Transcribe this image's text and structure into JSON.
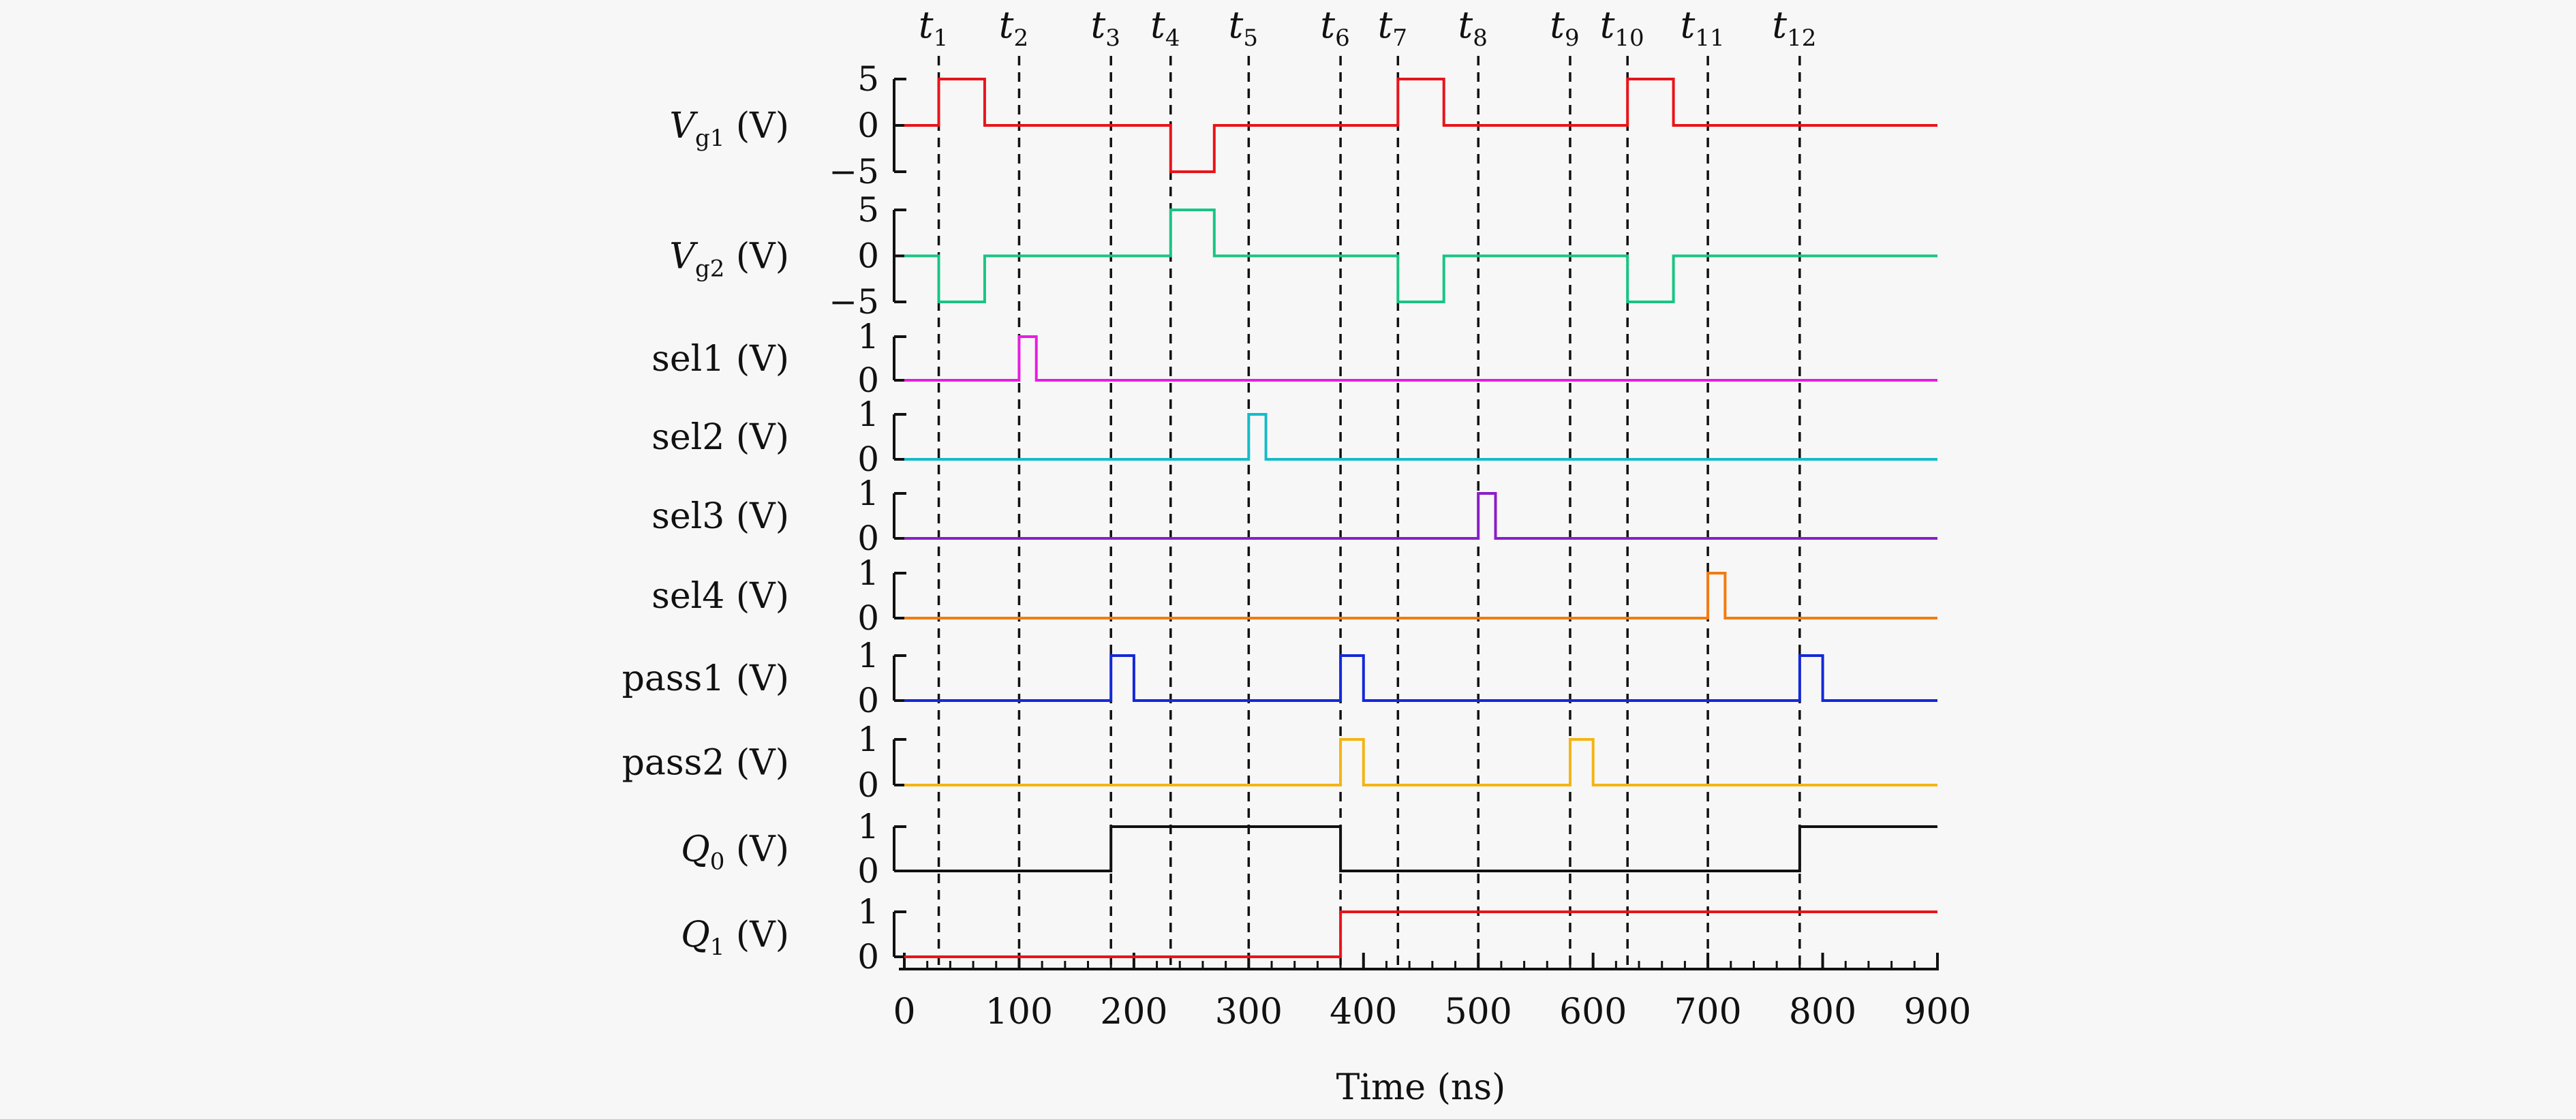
{
  "chart_data": {
    "type": "line",
    "title": "",
    "xlabel": "Time (ns)",
    "xlim": [
      0,
      900
    ],
    "x_ticks": [
      "0",
      "100",
      "200",
      "300",
      "400",
      "500",
      "600",
      "700",
      "800",
      "900"
    ],
    "time_markers": [
      {
        "name": "t",
        "sub": "1",
        "x": 30
      },
      {
        "name": "t",
        "sub": "2",
        "x": 100
      },
      {
        "name": "t",
        "sub": "3",
        "x": 180
      },
      {
        "name": "t",
        "sub": "4",
        "x": 232
      },
      {
        "name": "t",
        "sub": "5",
        "x": 300
      },
      {
        "name": "t",
        "sub": "6",
        "x": 380
      },
      {
        "name": "t",
        "sub": "7",
        "x": 430
      },
      {
        "name": "t",
        "sub": "8",
        "x": 500
      },
      {
        "name": "t",
        "sub": "9",
        "x": 580
      },
      {
        "name": "t",
        "sub": "10",
        "x": 630
      },
      {
        "name": "t",
        "sub": "11",
        "x": 700
      },
      {
        "name": "t",
        "sub": "12",
        "x": 780
      }
    ],
    "series": [
      {
        "label_main": "V",
        "label_sub": "g1",
        "label_unit": " (V)",
        "color": "#e8141a",
        "ylim": [
          -5,
          5
        ],
        "y_ticks": [
          "5",
          "0",
          "−5"
        ],
        "y_tick_values": [
          5,
          0,
          -5
        ],
        "x": [
          0,
          30,
          30,
          70,
          70,
          232,
          232,
          270,
          270,
          430,
          430,
          470,
          470,
          630,
          630,
          670,
          670,
          900
        ],
        "y": [
          0,
          0,
          5,
          5,
          0,
          0,
          -5,
          -5,
          0,
          0,
          5,
          5,
          0,
          0,
          5,
          5,
          0,
          0
        ]
      },
      {
        "label_main": "V",
        "label_sub": "g2",
        "label_unit": " (V)",
        "color": "#18c484",
        "ylim": [
          -5,
          5
        ],
        "y_ticks": [
          "5",
          "0",
          "−5"
        ],
        "y_tick_values": [
          5,
          0,
          -5
        ],
        "x": [
          0,
          30,
          30,
          70,
          70,
          232,
          232,
          270,
          270,
          430,
          430,
          470,
          470,
          630,
          630,
          670,
          670,
          900
        ],
        "y": [
          0,
          0,
          -5,
          -5,
          0,
          0,
          5,
          5,
          0,
          0,
          -5,
          -5,
          0,
          0,
          -5,
          -5,
          0,
          0
        ]
      },
      {
        "label_main": "sel1",
        "label_sub": "",
        "label_unit": " (V)",
        "color": "#e61ee0",
        "ylim": [
          0,
          1
        ],
        "y_ticks": [
          "1",
          "0"
        ],
        "y_tick_values": [
          1,
          0
        ],
        "x": [
          0,
          100,
          100,
          115,
          115,
          900
        ],
        "y": [
          0,
          0,
          1,
          1,
          0,
          0
        ]
      },
      {
        "label_main": "sel2",
        "label_sub": "",
        "label_unit": " (V)",
        "color": "#14bcc8",
        "ylim": [
          0,
          1
        ],
        "y_ticks": [
          "1",
          "0"
        ],
        "y_tick_values": [
          1,
          0
        ],
        "x": [
          0,
          300,
          300,
          315,
          315,
          900
        ],
        "y": [
          0,
          0,
          1,
          1,
          0,
          0
        ]
      },
      {
        "label_main": "sel3",
        "label_sub": "",
        "label_unit": " (V)",
        "color": "#8a1ec8",
        "ylim": [
          0,
          1
        ],
        "y_ticks": [
          "1",
          "0"
        ],
        "y_tick_values": [
          1,
          0
        ],
        "x": [
          0,
          500,
          500,
          515,
          515,
          900
        ],
        "y": [
          0,
          0,
          1,
          1,
          0,
          0
        ]
      },
      {
        "label_main": "sel4",
        "label_sub": "",
        "label_unit": " (V)",
        "color": "#f47a10",
        "ylim": [
          0,
          1
        ],
        "y_ticks": [
          "1",
          "0"
        ],
        "y_tick_values": [
          1,
          0
        ],
        "x": [
          0,
          700,
          700,
          715,
          715,
          900
        ],
        "y": [
          0,
          0,
          1,
          1,
          0,
          0
        ]
      },
      {
        "label_main": "pass1",
        "label_sub": "",
        "label_unit": " (V)",
        "color": "#1428d8",
        "ylim": [
          0,
          1
        ],
        "y_ticks": [
          "1",
          "0"
        ],
        "y_tick_values": [
          1,
          0
        ],
        "x": [
          0,
          180,
          180,
          200,
          200,
          380,
          380,
          400,
          400,
          780,
          780,
          800,
          800,
          900
        ],
        "y": [
          0,
          0,
          1,
          1,
          0,
          0,
          1,
          1,
          0,
          0,
          1,
          1,
          0,
          0
        ]
      },
      {
        "label_main": "pass2",
        "label_sub": "",
        "label_unit": " (V)",
        "color": "#f4b414",
        "ylim": [
          0,
          1
        ],
        "y_ticks": [
          "1",
          "0"
        ],
        "y_tick_values": [
          1,
          0
        ],
        "x": [
          0,
          380,
          380,
          400,
          400,
          580,
          580,
          600,
          600,
          900
        ],
        "y": [
          0,
          0,
          1,
          1,
          0,
          0,
          1,
          1,
          0,
          0
        ]
      },
      {
        "label_main": "Q",
        "label_sub": "0",
        "label_unit": " (V)",
        "color": "#111111",
        "ylim": [
          0,
          1
        ],
        "y_ticks": [
          "1",
          "0"
        ],
        "y_tick_values": [
          1,
          0
        ],
        "x": [
          0,
          180,
          180,
          380,
          380,
          780,
          780,
          900
        ],
        "y": [
          0,
          0,
          1,
          1,
          0,
          0,
          1,
          1
        ]
      },
      {
        "label_main": "Q",
        "label_sub": "1",
        "label_unit": " (V)",
        "color": "#e8141a",
        "ylim": [
          0,
          1
        ],
        "y_ticks": [
          "1",
          "0"
        ],
        "y_tick_values": [
          1,
          0
        ],
        "x": [
          0,
          380,
          380,
          900
        ],
        "y": [
          0,
          0,
          1,
          1
        ]
      }
    ]
  }
}
